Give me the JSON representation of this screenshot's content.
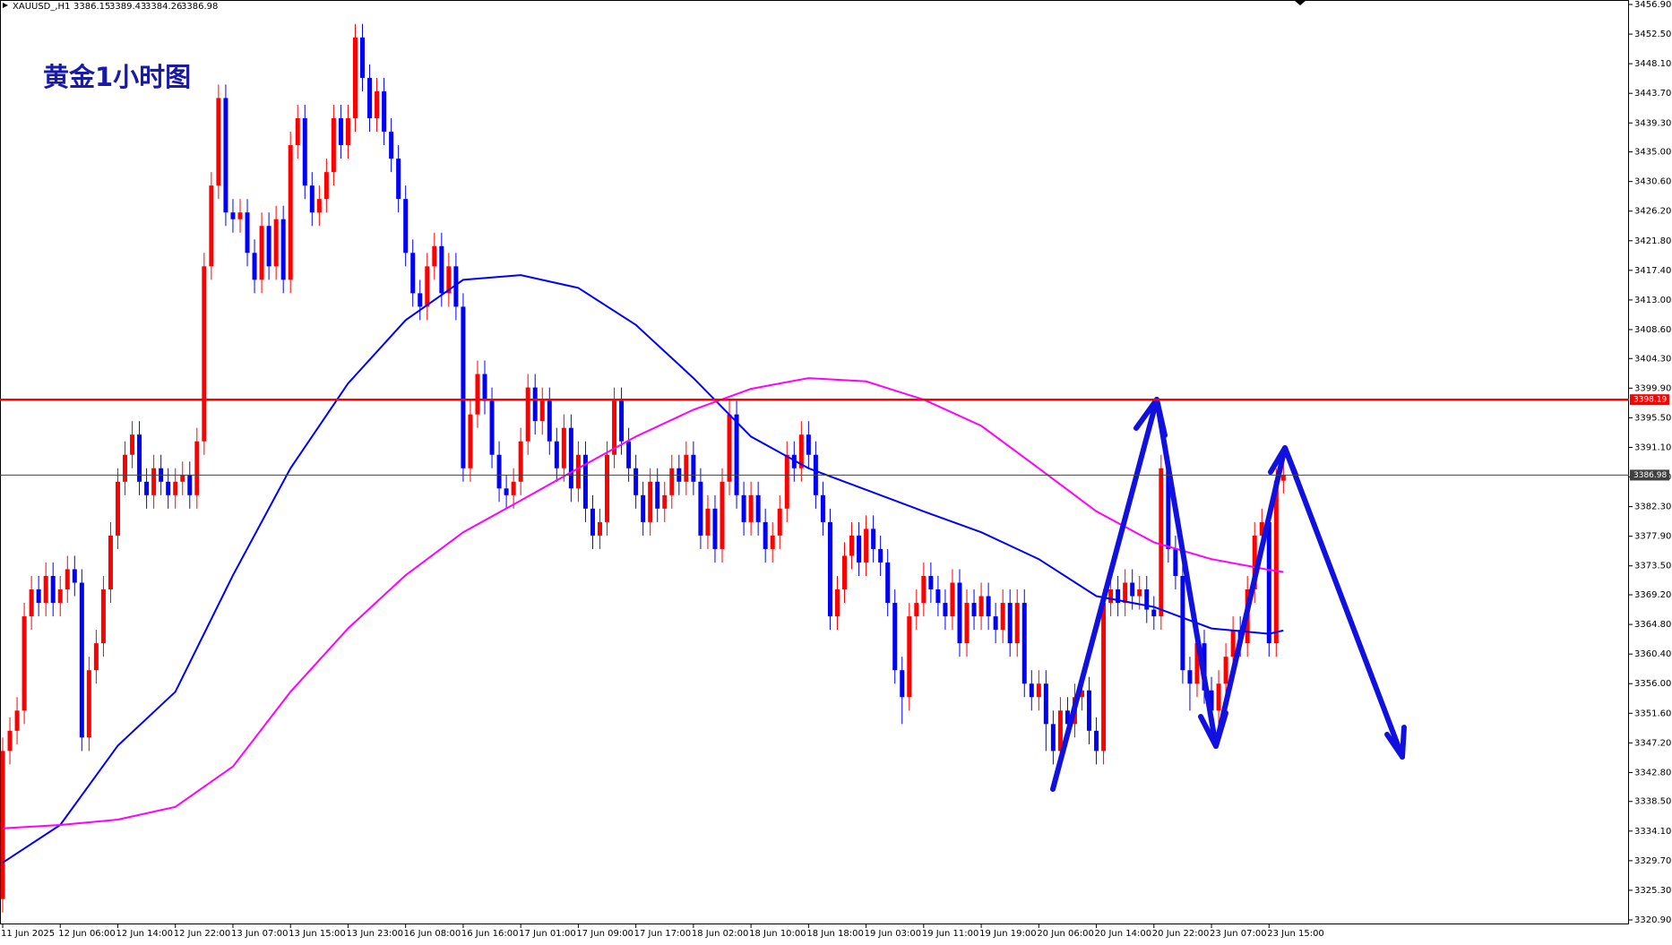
{
  "chart_data": {
    "type": "candlestick",
    "title": "黄金1小时图",
    "symbol": "XAUUSD_,H1",
    "up_color": "#ff0000",
    "down_color": "#0000ff",
    "categories": [
      "11 Jun 2025",
      null,
      null,
      null,
      null,
      null,
      null,
      null,
      "12 Jun 06:00",
      null,
      null,
      null,
      null,
      null,
      null,
      null,
      "12 Jun 14:00",
      null,
      null,
      null,
      null,
      null,
      null,
      null,
      "12 Jun 22:00",
      null,
      null,
      null,
      null,
      null,
      null,
      null,
      "13 Jun 07:00",
      null,
      null,
      null,
      null,
      null,
      null,
      null,
      "13 Jun 15:00",
      null,
      null,
      null,
      null,
      null,
      null,
      null,
      "13 Jun 23:00",
      null,
      null,
      null,
      null,
      null,
      null,
      null,
      "16 Jun 08:00",
      null,
      null,
      null,
      null,
      null,
      null,
      null,
      "16 Jun 16:00",
      null,
      null,
      null,
      null,
      null,
      null,
      null,
      "17 Jun 01:00",
      null,
      null,
      null,
      null,
      null,
      null,
      null,
      "17 Jun 09:00",
      null,
      null,
      null,
      null,
      null,
      null,
      null,
      "17 Jun 17:00",
      null,
      null,
      null,
      null,
      null,
      null,
      null,
      "18 Jun 02:00",
      null,
      null,
      null,
      null,
      null,
      null,
      null,
      "18 Jun 10:00",
      null,
      null,
      null,
      null,
      null,
      null,
      null,
      "18 Jun 18:00",
      null,
      null,
      null,
      null,
      null,
      null,
      null,
      "19 Jun 03:00",
      null,
      null,
      null,
      null,
      null,
      null,
      null,
      "19 Jun 11:00",
      null,
      null,
      null,
      null,
      null,
      null,
      null,
      "19 Jun 19:00",
      null,
      null,
      null,
      null,
      null,
      null,
      null,
      "20 Jun 06:00",
      null,
      null,
      null,
      null,
      null,
      null,
      null,
      "20 Jun 14:00",
      null,
      null,
      null,
      null,
      null,
      null,
      null,
      "20 Jun 22:00",
      null,
      null,
      null,
      null,
      null,
      null,
      null,
      "23 Jun 07:00",
      null,
      null,
      null,
      null,
      null,
      null,
      null,
      "23 Jun 15:00",
      null,
      null
    ],
    "open": [
      3324,
      3346,
      3349,
      3352,
      3366,
      3370,
      3368,
      3372,
      3368,
      3370,
      3373,
      3371,
      3348,
      3358,
      3362,
      3370,
      3378,
      3386,
      3390,
      3393,
      3386,
      3384,
      3388,
      3386,
      3384,
      3386,
      3387,
      3384,
      3392,
      3418,
      3430,
      3443,
      3426,
      3425,
      3426,
      3420,
      3416,
      3424,
      3418,
      3425,
      3416,
      3436,
      3440,
      3430,
      3426,
      3428,
      3432,
      3440,
      3436,
      3440,
      3452,
      3446,
      3440,
      3444,
      3438,
      3434,
      3428,
      3420,
      3414,
      3412,
      3418,
      3421,
      3414,
      3418,
      3412,
      3388,
      3396,
      3402,
      3398,
      3390,
      3385,
      3384,
      3386,
      3392,
      3400,
      3395,
      3398,
      3392,
      3388,
      3394,
      3385,
      3390,
      3382,
      3378,
      3380,
      3390,
      3398,
      3392,
      3388,
      3384,
      3380,
      3386,
      3382,
      3384,
      3388,
      3386,
      3390,
      3386,
      3378,
      3382,
      3376,
      3386,
      3396,
      3384,
      3380,
      3384,
      3380,
      3376,
      3378,
      3382,
      3390,
      3388,
      3393,
      3390,
      3384,
      3380,
      3366,
      3370,
      3375,
      3378,
      3374,
      3379,
      3376,
      3374,
      3368,
      3358,
      3354,
      3366,
      3368,
      3372,
      3370,
      3368,
      3366,
      3371,
      3362,
      3368,
      3366,
      3369,
      3366,
      3364,
      3368,
      3362,
      3368,
      3356,
      3354,
      3356,
      3350,
      3346,
      3352,
      3350,
      3354,
      3355,
      3349,
      3346,
      3368,
      3370,
      3368,
      3371,
      3369,
      3370,
      3367,
      3366,
      3388,
      3376,
      3372,
      3358,
      3356,
      3362,
      3355,
      3352,
      3356,
      3360,
      3364,
      3362,
      3370,
      3378,
      3380,
      3362,
      3386.15
    ],
    "high": [
      3348,
      3351,
      3354,
      3368,
      3372,
      3372,
      3374,
      3374,
      3372,
      3375,
      3375,
      3373,
      3360,
      3364,
      3372,
      3380,
      3388,
      3392,
      3395,
      3395,
      3388,
      3390,
      3390,
      3388,
      3388,
      3389,
      3389,
      3394,
      3420,
      3432,
      3445,
      3445,
      3428,
      3428,
      3428,
      3422,
      3426,
      3426,
      3427,
      3427,
      3438,
      3442,
      3442,
      3432,
      3430,
      3434,
      3442,
      3442,
      3442,
      3454,
      3454,
      3448,
      3446,
      3446,
      3440,
      3436,
      3430,
      3422,
      3416,
      3420,
      3423,
      3423,
      3420,
      3420,
      3414,
      3398,
      3404,
      3404,
      3400,
      3392,
      3387,
      3388,
      3394,
      3402,
      3402,
      3400,
      3400,
      3394,
      3396,
      3396,
      3392,
      3392,
      3384,
      3382,
      3392,
      3400,
      3400,
      3394,
      3390,
      3386,
      3388,
      3388,
      3386,
      3390,
      3390,
      3392,
      3392,
      3388,
      3384,
      3384,
      3388,
      3398,
      3398,
      3386,
      3386,
      3386,
      3382,
      3380,
      3384,
      3392,
      3392,
      3395,
      3395,
      3392,
      3386,
      3382,
      3372,
      3377,
      3380,
      3380,
      3381,
      3381,
      3378,
      3376,
      3370,
      3360,
      3368,
      3370,
      3374,
      3374,
      3372,
      3370,
      3373,
      3373,
      3370,
      3370,
      3371,
      3371,
      3368,
      3370,
      3370,
      3370,
      3370,
      3358,
      3358,
      3358,
      3352,
      3354,
      3354,
      3356,
      3357,
      3357,
      3351,
      3370,
      3372,
      3372,
      3373,
      3373,
      3372,
      3372,
      3369,
      3390,
      3390,
      3378,
      3374,
      3360,
      3364,
      3364,
      3357,
      3358,
      3362,
      3366,
      3366,
      3372,
      3380,
      3382,
      3382,
      3388,
      3389.43
    ],
    "low": [
      3322,
      3344,
      3347,
      3350,
      3364,
      3366,
      3366,
      3366,
      3366,
      3368,
      3369,
      3346,
      3346,
      3356,
      3360,
      3368,
      3376,
      3384,
      3388,
      3384,
      3382,
      3382,
      3384,
      3382,
      3382,
      3384,
      3382,
      3382,
      3390,
      3416,
      3428,
      3424,
      3423,
      3423,
      3418,
      3414,
      3414,
      3416,
      3416,
      3414,
      3414,
      3434,
      3428,
      3424,
      3424,
      3426,
      3430,
      3434,
      3434,
      3438,
      3444,
      3438,
      3438,
      3436,
      3432,
      3426,
      3418,
      3412,
      3410,
      3410,
      3416,
      3412,
      3412,
      3410,
      3386,
      3386,
      3394,
      3396,
      3388,
      3383,
      3382,
      3382,
      3384,
      3390,
      3393,
      3393,
      3390,
      3386,
      3386,
      3383,
      3383,
      3380,
      3376,
      3376,
      3378,
      3388,
      3390,
      3386,
      3382,
      3378,
      3378,
      3380,
      3380,
      3382,
      3384,
      3384,
      3384,
      3376,
      3376,
      3374,
      3374,
      3384,
      3382,
      3378,
      3378,
      3378,
      3374,
      3374,
      3376,
      3380,
      3386,
      3386,
      3388,
      3382,
      3378,
      3364,
      3364,
      3368,
      3373,
      3372,
      3372,
      3374,
      3372,
      3366,
      3356,
      3350,
      3352,
      3364,
      3366,
      3368,
      3366,
      3364,
      3364,
      3360,
      3360,
      3364,
      3364,
      3364,
      3362,
      3362,
      3360,
      3360,
      3354,
      3352,
      3352,
      3346,
      3344,
      3344,
      3348,
      3348,
      3352,
      3347,
      3344,
      3344,
      3366,
      3366,
      3366,
      3367,
      3367,
      3365,
      3364,
      3364,
      3374,
      3370,
      3356,
      3352,
      3354,
      3353,
      3350,
      3350,
      3354,
      3358,
      3360,
      3360,
      3368,
      3376,
      3360,
      3360,
      3384.26
    ],
    "close": [
      3346,
      3349,
      3352,
      3366,
      3370,
      3368,
      3372,
      3368,
      3370,
      3373,
      3371,
      3348,
      3358,
      3362,
      3370,
      3378,
      3386,
      3390,
      3393,
      3386,
      3384,
      3388,
      3386,
      3384,
      3386,
      3387,
      3384,
      3392,
      3418,
      3430,
      3443,
      3426,
      3425,
      3426,
      3420,
      3416,
      3424,
      3418,
      3425,
      3416,
      3436,
      3440,
      3430,
      3426,
      3428,
      3432,
      3440,
      3436,
      3440,
      3452,
      3446,
      3440,
      3444,
      3438,
      3434,
      3428,
      3420,
      3414,
      3412,
      3418,
      3421,
      3414,
      3418,
      3412,
      3388,
      3396,
      3402,
      3398,
      3390,
      3385,
      3384,
      3386,
      3392,
      3400,
      3395,
      3398,
      3392,
      3388,
      3394,
      3385,
      3390,
      3382,
      3378,
      3380,
      3390,
      3398,
      3392,
      3388,
      3384,
      3380,
      3386,
      3382,
      3384,
      3388,
      3386,
      3390,
      3386,
      3378,
      3382,
      3376,
      3386,
      3396,
      3384,
      3380,
      3384,
      3380,
      3376,
      3378,
      3382,
      3390,
      3388,
      3393,
      3390,
      3384,
      3380,
      3366,
      3370,
      3375,
      3378,
      3374,
      3379,
      3376,
      3374,
      3368,
      3358,
      3354,
      3366,
      3368,
      3372,
      3370,
      3368,
      3366,
      3371,
      3362,
      3368,
      3366,
      3369,
      3366,
      3364,
      3368,
      3362,
      3368,
      3356,
      3354,
      3356,
      3350,
      3346,
      3352,
      3350,
      3354,
      3355,
      3349,
      3346,
      3368,
      3370,
      3368,
      3371,
      3369,
      3370,
      3367,
      3366,
      3388,
      3376,
      3372,
      3358,
      3356,
      3362,
      3355,
      3352,
      3356,
      3360,
      3364,
      3362,
      3370,
      3378,
      3380,
      3362,
      3386.15,
      3386.98
    ],
    "lines": [
      {
        "color": "#0000ff",
        "x": [
          0,
          8,
          16,
          24,
          32,
          40,
          48,
          56,
          64,
          72,
          80,
          88,
          96,
          104,
          112,
          120,
          128,
          136,
          144,
          152,
          160,
          168,
          176,
          178
        ],
        "values": [
          3329.4,
          3335,
          3346.8,
          3354.8,
          3372.1,
          3388,
          3400.6,
          3410,
          3416,
          3416.7,
          3414.8,
          3409.3,
          3401.4,
          3392.7,
          3388,
          3384.8,
          3381.6,
          3378.5,
          3374.5,
          3369,
          3367.4,
          3364.2,
          3363.4,
          3363.9
        ]
      },
      {
        "color": "#ff00ff",
        "x": [
          0,
          8,
          16,
          24,
          32,
          40,
          48,
          56,
          64,
          72,
          80,
          88,
          96,
          104,
          112,
          120,
          128,
          136,
          144,
          152,
          160,
          168,
          176,
          178
        ],
        "values": [
          3334.5,
          3335,
          3335.8,
          3337.7,
          3343.7,
          3354.8,
          3364.2,
          3372.1,
          3378.5,
          3383.2,
          3388,
          3392.7,
          3396.7,
          3399.8,
          3401.4,
          3400.9,
          3398.2,
          3394.3,
          3388,
          3381.6,
          3377,
          3374.5,
          3372.9,
          3372.6
        ]
      }
    ],
    "hlines": [
      {
        "value": 3398.19,
        "color": "#ff0000"
      },
      {
        "value": 3386.98,
        "color": "#404040"
      }
    ],
    "ylim": [
      3320.9,
      3456.9
    ],
    "yticks": [
      {
        "value": 3456.9,
        "label": "3456.90"
      },
      {
        "value": 3452.5,
        "label": "3452.50"
      },
      {
        "value": 3448.1,
        "label": "3448.10"
      },
      {
        "value": 3443.7,
        "label": "3443.70"
      },
      {
        "value": 3439.3,
        "label": "3439.30"
      },
      {
        "value": 3435.0,
        "label": "3435.00"
      },
      {
        "value": 3430.6,
        "label": "3430.60"
      },
      {
        "value": 3426.2,
        "label": "3426.20"
      },
      {
        "value": 3421.8,
        "label": "3421.80"
      },
      {
        "value": 3417.4,
        "label": "3417.40"
      },
      {
        "value": 3413.0,
        "label": "3413.00"
      },
      {
        "value": 3408.6,
        "label": "3408.60"
      },
      {
        "value": 3404.3,
        "label": "3404.30"
      },
      {
        "value": 3399.9,
        "label": "3399.90"
      },
      {
        "value": 3395.5,
        "label": "3395.50"
      },
      {
        "value": 3391.1,
        "label": "3391.10"
      },
      {
        "value": 3386.7,
        "label": "3386.70"
      },
      {
        "value": 3382.3,
        "label": "3382.30"
      },
      {
        "value": 3377.9,
        "label": "3377.90"
      },
      {
        "value": 3373.5,
        "label": "3373.50"
      },
      {
        "value": 3369.2,
        "label": "3369.20"
      },
      {
        "value": 3364.8,
        "label": "3364.80"
      },
      {
        "value": 3360.4,
        "label": "3360.40"
      },
      {
        "value": 3356.0,
        "label": "3356.00"
      },
      {
        "value": 3351.6,
        "label": "3351.60"
      },
      {
        "value": 3347.2,
        "label": "3347.20"
      },
      {
        "value": 3342.8,
        "label": "3342.80"
      },
      {
        "value": 3338.5,
        "label": "3338.50"
      },
      {
        "value": 3334.1,
        "label": "3334.10"
      },
      {
        "value": 3329.7,
        "label": "3329.70"
      },
      {
        "value": 3325.3,
        "label": "3325.30"
      },
      {
        "value": 3320.9,
        "label": "3320.90"
      }
    ]
  }
}
